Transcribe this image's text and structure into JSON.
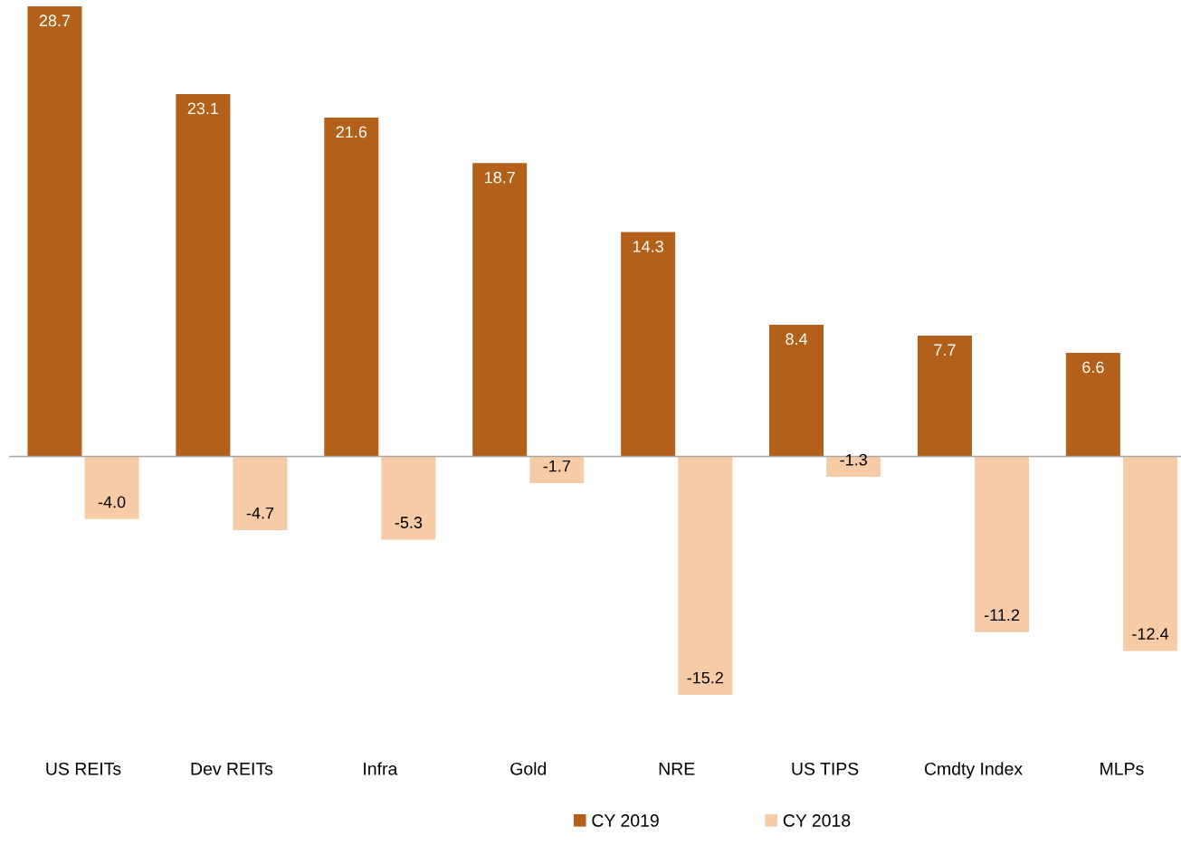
{
  "chart_data": {
    "type": "bar",
    "categories": [
      "US REITs",
      "Dev REITs",
      "Infra",
      "Gold",
      "NRE",
      "US TIPS",
      "Cmdty Index",
      "MLPs"
    ],
    "series": [
      {
        "name": "CY 2019",
        "color": "#b2601a",
        "values": [
          28.7,
          23.1,
          21.6,
          18.7,
          14.3,
          8.4,
          7.7,
          6.6
        ],
        "value_labels": [
          "28.7",
          "23.1",
          "21.6",
          "18.7",
          "14.3",
          "8.4",
          "7.7",
          "6.6"
        ]
      },
      {
        "name": "CY 2018",
        "color": "#f6cba5",
        "values": [
          -4.0,
          -4.7,
          -5.3,
          -1.7,
          -15.2,
          -1.3,
          -11.2,
          -12.4
        ],
        "value_labels": [
          "-4.0",
          "-4.7",
          "-5.3",
          "-1.7",
          "-15.2",
          "-1.3",
          "-11.2",
          "-12.4"
        ]
      }
    ],
    "grid": false,
    "legend": "bottom"
  }
}
